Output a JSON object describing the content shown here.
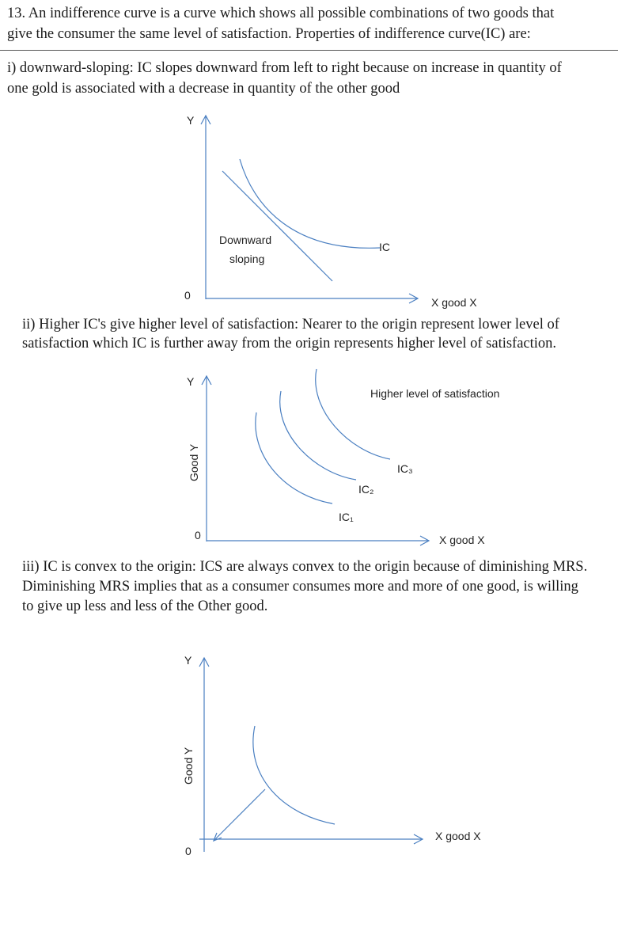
{
  "intro": {
    "line1": "13. An indifference curve is a curve which shows all possible combinations of two goods that",
    "line2": "give the consumer the same level of satisfaction. Properties of indifference curve(IC) are:"
  },
  "point1": {
    "line1": "i) downward-sloping: IC slopes downward from left to right because on increase in quantity of",
    "line2": "one gold is associated with a decrease in quantity of the other good"
  },
  "figure1": {
    "y_label": "Y",
    "origin": "0",
    "x_label": "X good X",
    "annotation_line1": "Downward",
    "annotation_line2": "sloping",
    "curve_label": "IC"
  },
  "point2": {
    "line1": "ii) Higher IC's give higher level of satisfaction: Nearer to the origin represent lower level of",
    "line2": "satisfaction which IC is further away from the origin represents higher level of satisfaction."
  },
  "figure2": {
    "y_label": "Y",
    "y_axis_title": "Good Y",
    "origin": "0",
    "x_label": "X good X",
    "annotation": "Higher level of satisfaction",
    "curve_labels": [
      "IC₁",
      "IC₂",
      "IC₃"
    ]
  },
  "point3": {
    "line1": "iii) IC is convex to the origin: ICS are always convex to the origin because of diminishing MRS.",
    "line2": "Diminishing MRS implies that as a consumer consumes more and more of one good, is willing",
    "line3": "to give up less and less of the Other good."
  },
  "figure3": {
    "y_label": "Y",
    "y_axis_title": "Good Y",
    "origin": "0",
    "x_label": "X good X"
  },
  "colors": {
    "diagram_line": "#4a7fc1",
    "text": "#1a1a1a"
  }
}
